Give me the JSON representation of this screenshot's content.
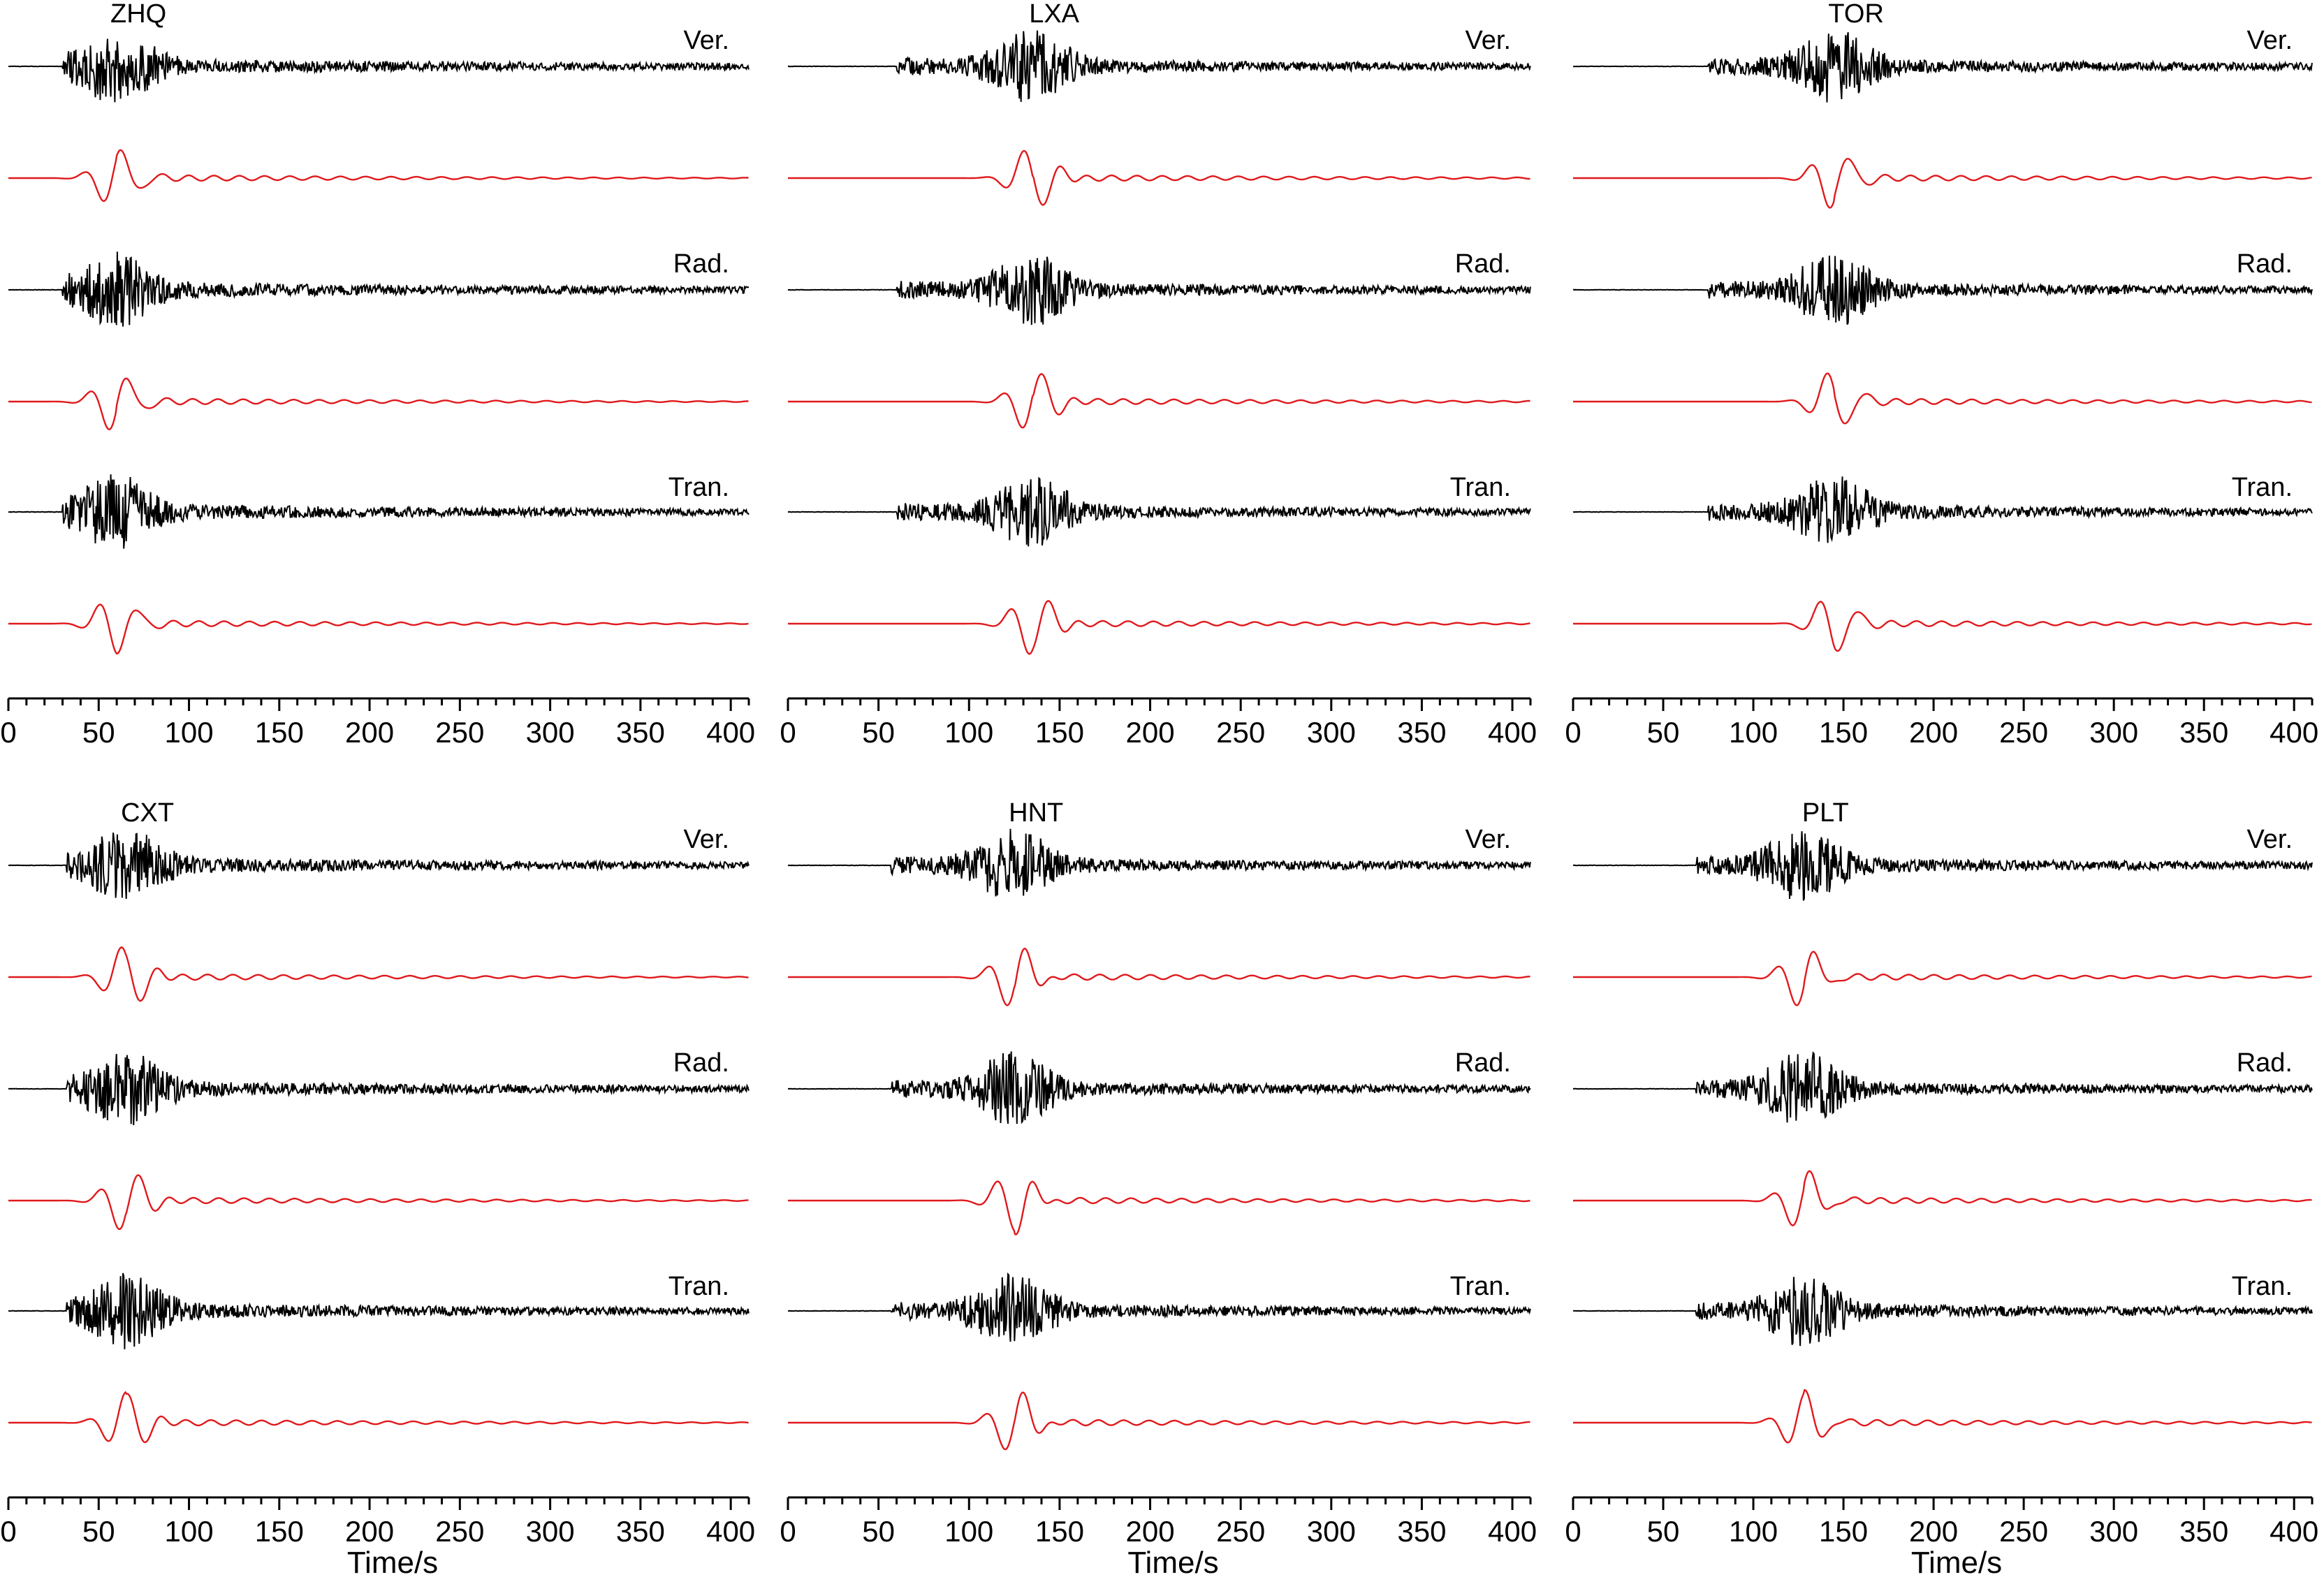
{
  "figure": {
    "background": "#ffffff",
    "colors": {
      "observed": "#000000",
      "synthetic": "#e0191c",
      "axis": "#000000"
    }
  },
  "chart_data": [
    {
      "type": "line",
      "station": "ZHQ",
      "onset": 30,
      "peak": 60,
      "xlim": [
        0,
        410
      ],
      "ticks": [
        "0",
        "50",
        "100",
        "150",
        "200",
        "250",
        "300",
        "350",
        "400"
      ],
      "xlabel": "",
      "components": [
        {
          "label": "Ver.",
          "series": [
            "observed",
            "synthetic"
          ]
        },
        {
          "label": "Rad.",
          "series": [
            "observed",
            "synthetic"
          ]
        },
        {
          "label": "Tran.",
          "series": [
            "observed",
            "synthetic"
          ]
        }
      ]
    },
    {
      "type": "line",
      "station": "LXA",
      "onset": 60,
      "peak": 135,
      "xlim": [
        0,
        410
      ],
      "ticks": [
        "0",
        "50",
        "100",
        "150",
        "200",
        "250",
        "300",
        "350",
        "400"
      ],
      "xlabel": "",
      "components": [
        {
          "label": "Ver.",
          "series": [
            "observed",
            "synthetic"
          ]
        },
        {
          "label": "Rad.",
          "series": [
            "observed",
            "synthetic"
          ]
        },
        {
          "label": "Tran.",
          "series": [
            "observed",
            "synthetic"
          ]
        }
      ]
    },
    {
      "type": "line",
      "station": "TOR",
      "onset": 75,
      "peak": 145,
      "xlim": [
        0,
        410
      ],
      "ticks": [
        "0",
        "50",
        "100",
        "150",
        "200",
        "250",
        "300",
        "350",
        "400"
      ],
      "xlabel": "",
      "components": [
        {
          "label": "Ver.",
          "series": [
            "observed",
            "synthetic"
          ]
        },
        {
          "label": "Rad.",
          "series": [
            "observed",
            "synthetic"
          ]
        },
        {
          "label": "Tran.",
          "series": [
            "observed",
            "synthetic"
          ]
        }
      ]
    },
    {
      "type": "line",
      "station": "CXT",
      "onset": 32,
      "peak": 65,
      "xlim": [
        0,
        410
      ],
      "ticks": [
        "0",
        "50",
        "100",
        "150",
        "200",
        "250",
        "300",
        "350",
        "400"
      ],
      "xlabel": "Time/s",
      "components": [
        {
          "label": "Ver.",
          "series": [
            "observed",
            "synthetic"
          ]
        },
        {
          "label": "Rad.",
          "series": [
            "observed",
            "synthetic"
          ]
        },
        {
          "label": "Tran.",
          "series": [
            "observed",
            "synthetic"
          ]
        }
      ]
    },
    {
      "type": "line",
      "station": "HNT",
      "onset": 57,
      "peak": 125,
      "xlim": [
        0,
        410
      ],
      "ticks": [
        "0",
        "50",
        "100",
        "150",
        "200",
        "250",
        "300",
        "350",
        "400"
      ],
      "xlabel": "Time/s",
      "components": [
        {
          "label": "Ver.",
          "series": [
            "observed",
            "synthetic"
          ]
        },
        {
          "label": "Rad.",
          "series": [
            "observed",
            "synthetic"
          ]
        },
        {
          "label": "Tran.",
          "series": [
            "observed",
            "synthetic"
          ]
        }
      ]
    },
    {
      "type": "line",
      "station": "PLT",
      "onset": 68,
      "peak": 128,
      "xlim": [
        0,
        410
      ],
      "ticks": [
        "0",
        "50",
        "100",
        "150",
        "200",
        "250",
        "300",
        "350",
        "400"
      ],
      "xlabel": "Time/s",
      "components": [
        {
          "label": "Ver.",
          "series": [
            "observed",
            "synthetic"
          ]
        },
        {
          "label": "Rad.",
          "series": [
            "observed",
            "synthetic"
          ]
        },
        {
          "label": "Tran.",
          "series": [
            "observed",
            "synthetic"
          ]
        }
      ]
    }
  ]
}
